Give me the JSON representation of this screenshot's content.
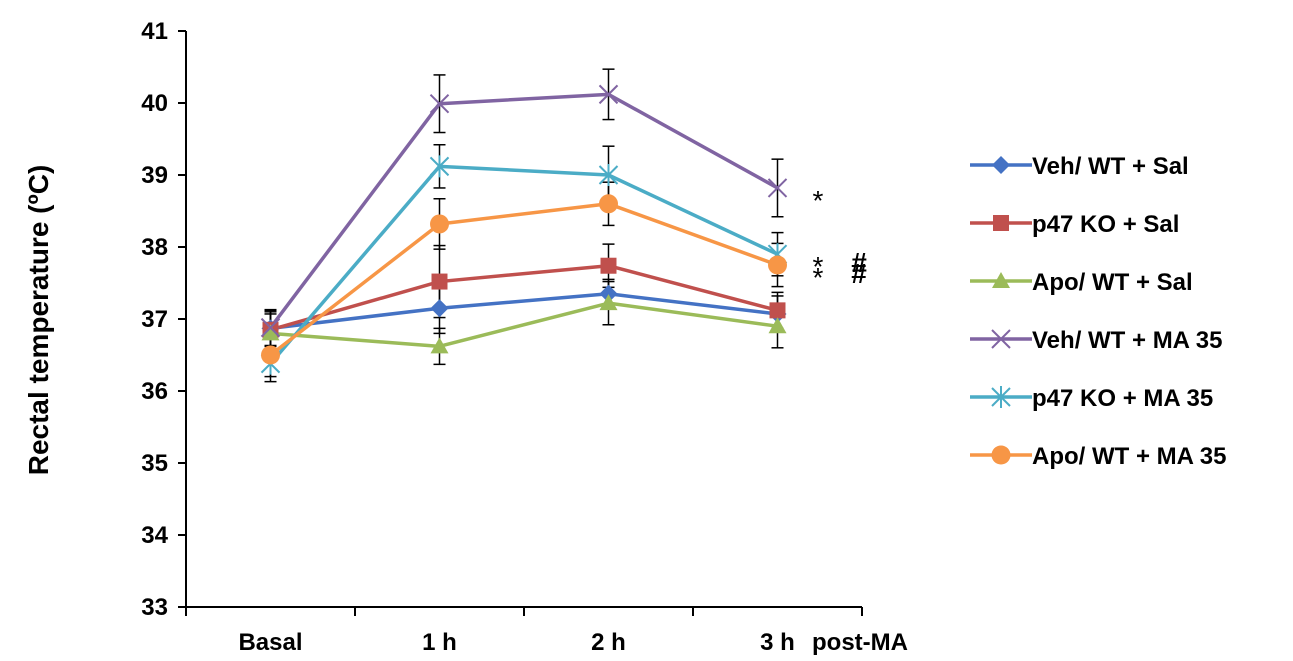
{
  "chart_data": {
    "type": "line",
    "title": "",
    "xlabel": "",
    "ylabel": "Rectal temperature (ºC)",
    "x_suffix": "post-MA",
    "categories": [
      "Basal",
      "1 h",
      "2 h",
      "3 h"
    ],
    "ylim": [
      33,
      41
    ],
    "yticks": [
      33,
      34,
      35,
      36,
      37,
      38,
      39,
      40,
      41
    ],
    "grid": false,
    "legend_position": "right",
    "series": [
      {
        "name": "Veh/ WT + Sal",
        "color": "#4472c4",
        "marker": "diamond",
        "values": [
          36.87,
          37.15,
          37.35,
          37.07
        ],
        "errors": [
          0.25,
          0.35,
          0.2,
          0.25
        ]
      },
      {
        "name": "p47 KO + Sal",
        "color": "#c0504d",
        "marker": "square",
        "values": [
          36.85,
          37.52,
          37.74,
          37.12
        ],
        "errors": [
          0.22,
          0.5,
          0.3,
          0.25
        ]
      },
      {
        "name": "Apo/ WT + Sal",
        "color": "#9bbb59",
        "marker": "triangle",
        "values": [
          36.8,
          36.62,
          37.22,
          36.9
        ],
        "errors": [
          0.3,
          0.25,
          0.3,
          0.3
        ]
      },
      {
        "name": "Veh/ WT + MA 35",
        "color": "#8064a2",
        "marker": "x",
        "values": [
          36.88,
          39.99,
          40.12,
          38.82
        ],
        "errors": [
          0.25,
          0.4,
          0.35,
          0.4
        ]
      },
      {
        "name": "p47 KO + MA 35",
        "color": "#4bacc6",
        "marker": "star",
        "values": [
          36.38,
          39.12,
          39.0,
          37.9
        ],
        "errors": [
          0.25,
          0.3,
          0.4,
          0.3
        ]
      },
      {
        "name": "Apo/ WT + MA 35",
        "color": "#f79646",
        "marker": "circle",
        "values": [
          36.5,
          38.32,
          38.6,
          37.75
        ],
        "errors": [
          0.3,
          0.35,
          0.3,
          0.3
        ]
      }
    ],
    "annotations": [
      {
        "series": "Veh/ WT + MA 35",
        "text": "*"
      },
      {
        "series": "p47 KO + MA 35",
        "text": "*",
        "hash": "#"
      },
      {
        "series": "Apo/ WT + MA 35",
        "text": "*",
        "hash": "#"
      }
    ]
  }
}
